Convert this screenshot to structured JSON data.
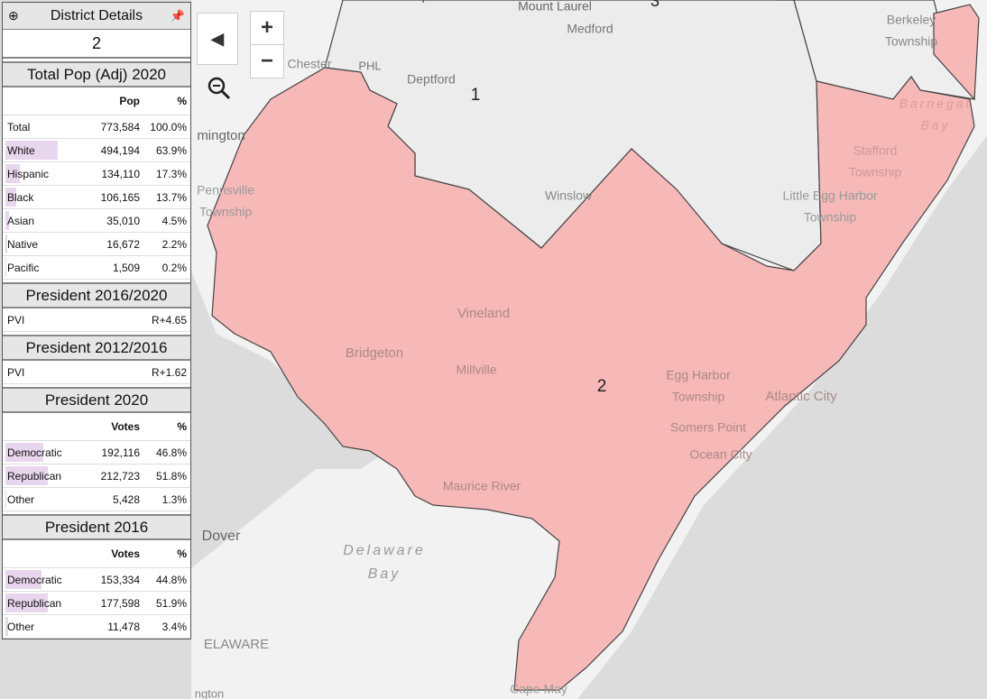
{
  "panel": {
    "title": "District Details",
    "district": "2",
    "sections": [
      {
        "title": "Total Pop (Adj) 2020",
        "columns": [
          "Pop",
          "%"
        ],
        "rows": [
          [
            "Total",
            "773,584",
            "100.0%"
          ],
          [
            "White",
            "494,194",
            "63.9%"
          ],
          [
            "Hispanic",
            "134,110",
            "17.3%"
          ],
          [
            "Black",
            "106,165",
            "13.7%"
          ],
          [
            "Asian",
            "35,010",
            "4.5%"
          ],
          [
            "Native",
            "16,672",
            "2.2%"
          ],
          [
            "Pacific",
            "1,509",
            "0.2%"
          ]
        ]
      },
      {
        "title": "President 2016/2020",
        "rows": [
          [
            "PVI",
            "R+4.65"
          ]
        ]
      },
      {
        "title": "President 2012/2016",
        "rows": [
          [
            "PVI",
            "R+1.62"
          ]
        ]
      },
      {
        "title": "President 2020",
        "columns": [
          "Votes",
          "%"
        ],
        "rows": [
          [
            "Democratic",
            "192,116",
            "46.8%"
          ],
          [
            "Republican",
            "212,723",
            "51.8%"
          ],
          [
            "Other",
            "5,428",
            "1.3%"
          ]
        ]
      },
      {
        "title": "President 2016",
        "columns": [
          "Votes",
          "%"
        ],
        "rows": [
          [
            "Democratic",
            "153,334",
            "44.8%"
          ],
          [
            "Republican",
            "177,598",
            "51.9%"
          ],
          [
            "Other",
            "11,478",
            "3.4%"
          ]
        ]
      }
    ]
  },
  "map": {
    "controls": [
      "+",
      "−"
    ],
    "labels": [
      [
        "Philadelphia"
      ],
      [
        "Mount Laurel"
      ],
      [
        "Medford"
      ],
      [
        "3"
      ],
      [
        "Berkeley",
        "Township"
      ],
      [
        "Chester"
      ],
      [
        "PHL"
      ],
      [
        "Deptford"
      ],
      [
        "1"
      ],
      [
        "mington"
      ],
      [
        "Pennsville",
        "Township"
      ],
      [
        "Winslow"
      ],
      [
        "Little Egg Harbor",
        "Township"
      ],
      [
        "Stafford",
        "Township"
      ],
      [
        "Barnegat",
        "Bay"
      ],
      [
        "Vineland"
      ],
      [
        "Bridgeton"
      ],
      [
        "Millville"
      ],
      [
        "2"
      ],
      [
        "Egg Harbor",
        "Township"
      ],
      [
        "Atlantic City"
      ],
      [
        "Somers Point"
      ],
      [
        "Ocean City"
      ],
      [
        "Maurice River"
      ],
      [
        "Delaware",
        "Bay"
      ],
      [
        "Dover"
      ],
      [
        "ELAWARE"
      ],
      [
        "Cape May"
      ],
      [
        "ngton"
      ]
    ]
  }
}
